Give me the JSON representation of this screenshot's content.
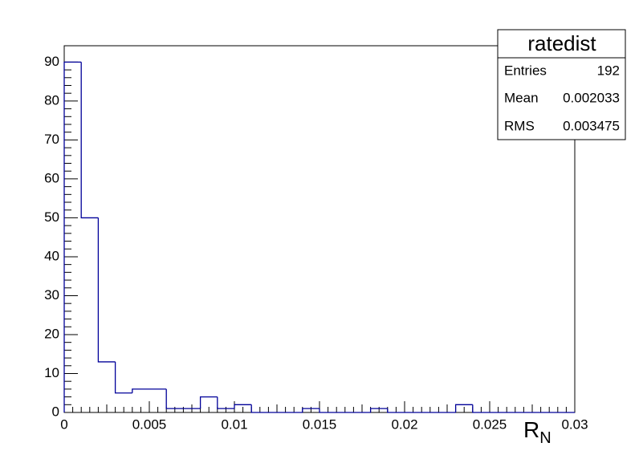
{
  "chart_data": {
    "type": "histogram",
    "bins": [
      0,
      0.001,
      0.002,
      0.003,
      0.004,
      0.005,
      0.006,
      0.007,
      0.008,
      0.009,
      0.01,
      0.011,
      0.012,
      0.013,
      0.014,
      0.015,
      0.016,
      0.017,
      0.018,
      0.019,
      0.02,
      0.021,
      0.022,
      0.023,
      0.024,
      0.025,
      0.026,
      0.027,
      0.028,
      0.029,
      0.03
    ],
    "values": [
      90,
      50,
      13,
      5,
      6,
      6,
      1,
      1,
      4,
      1,
      2,
      0,
      0,
      0,
      1,
      0,
      0,
      0,
      1,
      0,
      0,
      0,
      0,
      2,
      0,
      0,
      0,
      0,
      0,
      0
    ],
    "color": "#000099",
    "xlim": [
      0,
      0.03
    ],
    "xticks": [
      0,
      0.005,
      0.01,
      0.015,
      0.02,
      0.025,
      0.03
    ],
    "ylim": [
      0,
      94.2
    ],
    "yticks": [
      0,
      10,
      20,
      30,
      40,
      50,
      60,
      70,
      80,
      90
    ],
    "x_label": {
      "main": "R",
      "sub": "N"
    },
    "stats": {
      "title": "ratedist",
      "rows": [
        [
          "Entries",
          "192"
        ],
        [
          "Mean",
          "0.002033"
        ],
        [
          "RMS",
          "0.003475"
        ]
      ]
    }
  }
}
